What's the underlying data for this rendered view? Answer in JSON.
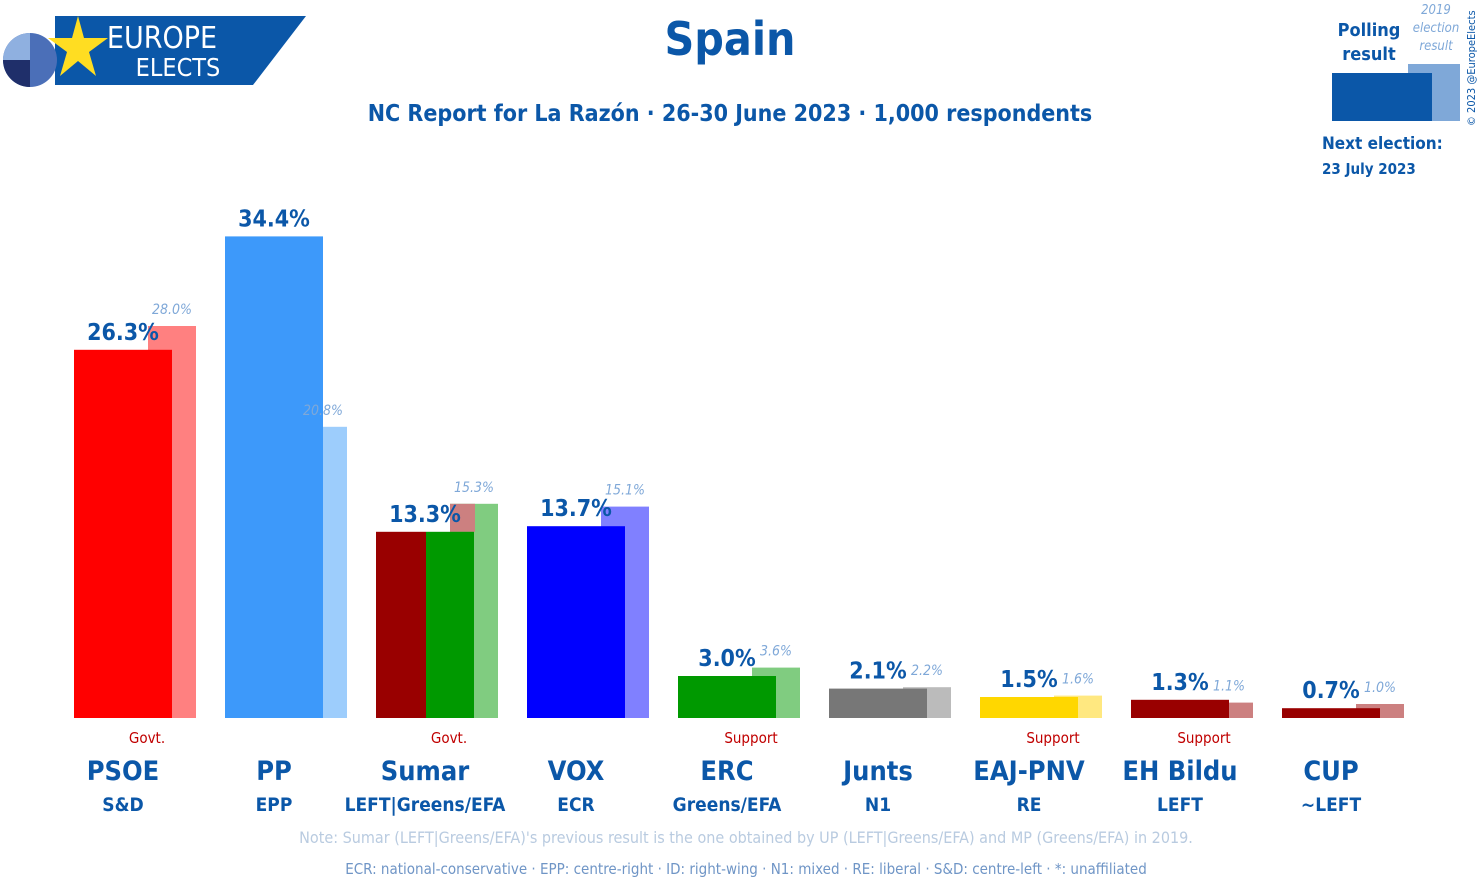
{
  "brand": {
    "line1": "EUROPE",
    "line2": "ELECTS"
  },
  "header": {
    "title": "Spain",
    "subtitle": "NC Report for La Razón · 26-30 June 2023 · 1,000 respondents"
  },
  "legend": {
    "polling_label_1": "Polling",
    "polling_label_2": "result",
    "prev_label_1": "2019",
    "prev_label_2": "election",
    "prev_label_3": "result",
    "next_election_label": "Next election:",
    "next_election_date": "23 July 2023",
    "copyright": "© 2023 @EuropeElects"
  },
  "footer": {
    "note": "Note: Sumar (LEFT|Greens/EFA)'s previous result is the one obtained by UP (LEFT|Greens/EFA) and MP (Greens/EFA) in 2019.",
    "glossary": "ECR: national-conservative · EPP: centre-right · ID: right-wing · N1: mixed · RE: liberal · S&D: centre-left · *: unaffiliated"
  },
  "chart_data": {
    "type": "bar",
    "title": "Spain",
    "ylim": [
      0,
      35
    ],
    "categories": [
      "PSOE",
      "PP",
      "Sumar",
      "VOX",
      "ERC",
      "Junts",
      "EAJ-PNV",
      "EH Bildu",
      "CUP"
    ],
    "groups": [
      "S&D",
      "EPP",
      "LEFT|Greens/EFA",
      "ECR",
      "Greens/EFA",
      "N1",
      "RE",
      "LEFT",
      "~LEFT"
    ],
    "status": [
      "Govt.",
      "",
      "Govt.",
      "",
      "Support",
      "",
      "Support",
      "Support",
      ""
    ],
    "series": [
      {
        "name": "Polling result",
        "values": [
          26.3,
          34.4,
          13.3,
          13.7,
          3.0,
          2.1,
          1.5,
          1.3,
          0.7
        ],
        "labels": [
          "26.3%",
          "34.4%",
          "13.3%",
          "13.7%",
          "3.0%",
          "2.1%",
          "1.5%",
          "1.3%",
          "0.7%"
        ]
      },
      {
        "name": "2019 election result",
        "values": [
          28.0,
          20.8,
          15.3,
          15.1,
          3.6,
          2.2,
          1.6,
          1.1,
          1.0
        ],
        "labels": [
          "28.0%",
          "20.8%",
          "15.3%",
          "15.1%",
          "3.6%",
          "2.2%",
          "1.6%",
          "1.1%",
          "1.0%"
        ]
      }
    ],
    "colors": [
      "#ff0000",
      "#3d99fa",
      "#990000",
      "#0000ff",
      "#009900",
      "#777777",
      "#ffd700",
      "#990000",
      "#990000"
    ],
    "prev_colors": [
      "#ff8080",
      "#9dcdfc",
      "#cc8080",
      "#8080ff",
      "#80cc80",
      "#bbbbbb",
      "#ffe880",
      "#cc8080",
      "#cc8080"
    ],
    "sumar_split_colors": [
      "#990000",
      "#009900",
      "#80cc80"
    ]
  }
}
